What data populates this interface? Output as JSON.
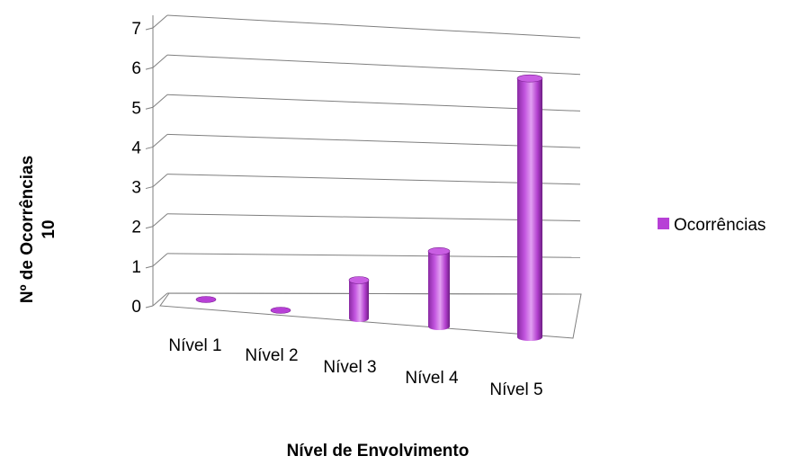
{
  "chart_data": {
    "type": "bar",
    "style": "3d-cylinder",
    "categories": [
      "Nível 1",
      "Nível 2",
      "Nível 3",
      "Nível 4",
      "Nível 5"
    ],
    "series": [
      {
        "name": "Ocorrências",
        "values": [
          0,
          0,
          1,
          2,
          7
        ]
      }
    ],
    "title": "",
    "xlabel": "Nível de Envolvimento",
    "ylabel": "Nº de Ocorrências",
    "ylabel_line2": "10",
    "ylim": [
      0,
      7
    ],
    "yticks": [
      "0",
      "1",
      "2",
      "3",
      "4",
      "5",
      "6",
      "7"
    ],
    "grid": true,
    "legend": "right",
    "colors": {
      "bar": "#b740d6",
      "bar_dark": "#7a1f91",
      "bar_light": "#e4a3f3",
      "bar_top": "#c95ee3",
      "grid": "#7f7f7f"
    }
  }
}
